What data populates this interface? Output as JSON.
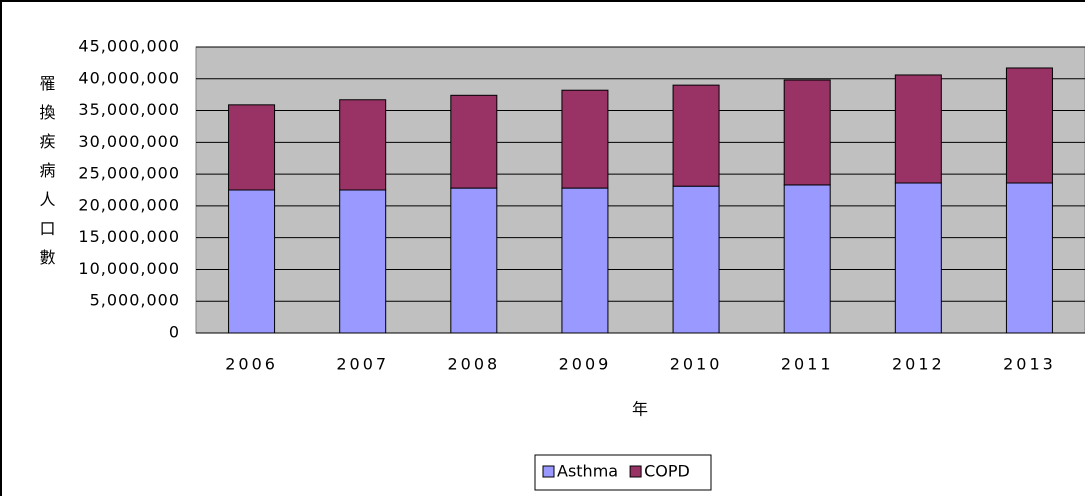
{
  "chart_data": {
    "type": "stacked_bar",
    "y_label": "罹換疾病人口數",
    "x_label": "年",
    "categories": [
      "2006",
      "2007",
      "2008",
      "2009",
      "2010",
      "2011",
      "2012",
      "2013"
    ],
    "series": [
      {
        "name": "Asthma",
        "color": "#9999ff",
        "values": [
          22500000,
          22500000,
          22800000,
          22800000,
          23100000,
          23300000,
          23600000,
          23600000
        ]
      },
      {
        "name": "COPD",
        "color": "#993366",
        "values": [
          13400000,
          14200000,
          14600000,
          15400000,
          15900000,
          16500000,
          17000000,
          18100000
        ]
      }
    ],
    "ylim": [
      0,
      45000000
    ],
    "yticks": [
      0,
      {
        "value": 5000000,
        "label": "5,000,000"
      },
      {
        "value": 10000000,
        "label": "10,000,000"
      },
      {
        "value": 15000000,
        "label": "15,000,000"
      },
      {
        "value": 20000000,
        "label": "20,000,000"
      },
      {
        "value": 25000000,
        "label": "25,000,000"
      },
      {
        "value": 30000000,
        "label": "30,000,000"
      },
      {
        "value": 35000000,
        "label": "35,000,000"
      },
      {
        "value": 40000000,
        "label": "40,000,000"
      },
      {
        "value": 45000000,
        "label": "45,000,000"
      }
    ],
    "grid": true,
    "plot_background": "#c0c0c0",
    "legend": "bottom"
  }
}
